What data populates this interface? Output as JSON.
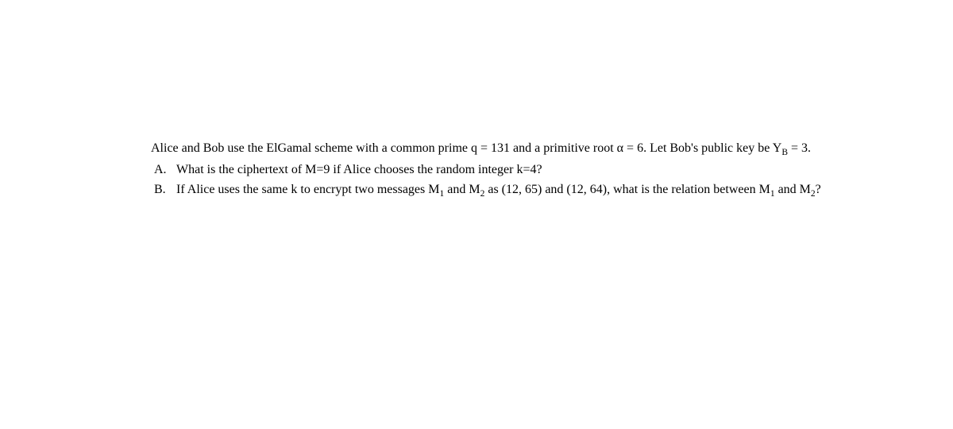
{
  "intro": {
    "line1_pre": "Alice and Bob use the ElGamal scheme with a common prime q = 131 and a primitive root α = 6. Let Bob's public",
    "line2_prefix": "key be Y",
    "line2_sub": "B",
    "line2_suffix": " = 3."
  },
  "items": {
    "a": {
      "marker": "A.",
      "text": "What is the ciphertext of M=9 if Alice chooses the random integer k=4?"
    },
    "b": {
      "marker": "B.",
      "p1": "If Alice uses the same k to encrypt two messages M",
      "s1": "1",
      "p2": " and M",
      "s2": "2",
      "p3": " as (12, 65) and (12, 64), what is the relation",
      "p4": "between M",
      "s3": "1",
      "p5": " and M",
      "s4": "2",
      "p6": "?"
    }
  }
}
